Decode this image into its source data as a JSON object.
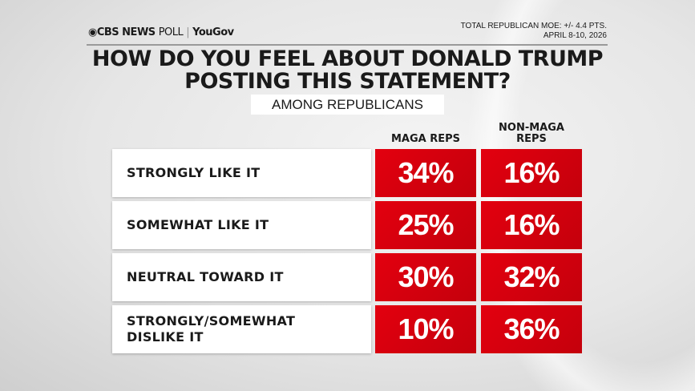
{
  "header": {
    "brand": "CBS NEWS",
    "poll": "POLL",
    "partner": "YouGov",
    "moe": "TOTAL REPUBLICAN MOE: +/- 4.4 PTS.",
    "dates": "APRIL 8-10, 2026"
  },
  "chart_data": {
    "type": "table",
    "title": "HOW DO YOU FEEL ABOUT DONALD TRUMP POSTING THIS STATEMENT?",
    "title_lines": [
      "HOW DO YOU FEEL ABOUT DONALD TRUMP",
      "POSTING THIS STATEMENT?"
    ],
    "subtitle": "AMONG REPUBLICANS",
    "columns": [
      "MAGA REPS",
      "NON-MAGA REPS"
    ],
    "column_lines": [
      [
        "MAGA REPS"
      ],
      [
        "NON-MAGA",
        "REPS"
      ]
    ],
    "categories": [
      "STRONGLY LIKE IT",
      "SOMEWHAT LIKE IT",
      "NEUTRAL TOWARD IT",
      "STRONGLY/SOMEWHAT DISLIKE IT"
    ],
    "category_lines": [
      [
        "STRONGLY LIKE IT"
      ],
      [
        "SOMEWHAT LIKE IT"
      ],
      [
        "NEUTRAL TOWARD IT"
      ],
      [
        "STRONGLY/SOMEWHAT",
        "DISLIKE IT"
      ]
    ],
    "series": [
      {
        "name": "MAGA REPS",
        "values": [
          34,
          25,
          30,
          10
        ],
        "labels": [
          "34%",
          "25%",
          "30%",
          "10%"
        ]
      },
      {
        "name": "NON-MAGA REPS",
        "values": [
          16,
          16,
          32,
          36
        ],
        "labels": [
          "16%",
          "16%",
          "32%",
          "36%"
        ]
      }
    ],
    "unit": "%",
    "colors": {
      "cell": "#d8000e",
      "label_bg": "#ffffff"
    }
  }
}
